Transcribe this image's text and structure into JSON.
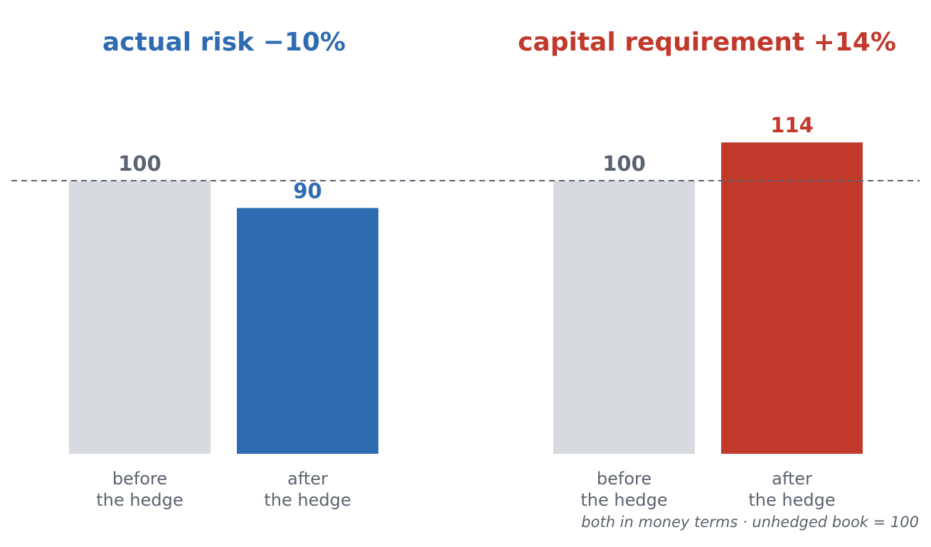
{
  "chart_data": {
    "type": "bar",
    "ylim": [
      0,
      120
    ],
    "baseline": {
      "value": 100,
      "style": "dashed",
      "color": "#5b6270"
    },
    "panels": [
      {
        "title": "actual risk  −10%",
        "title_color": "#2e6bb0",
        "bars": [
          {
            "category": [
              "before",
              "the hedge"
            ],
            "value": 100,
            "label": "100",
            "color": "#d7dadf",
            "label_color": "#5b6270"
          },
          {
            "category": [
              "after",
              "the hedge"
            ],
            "value": 90,
            "label": "90",
            "color": "#2e6bb0",
            "label_color": "#2e6bb0"
          }
        ]
      },
      {
        "title": "capital requirement  +14%",
        "title_color": "#c0392b",
        "bars": [
          {
            "category": [
              "before",
              "the hedge"
            ],
            "value": 100,
            "label": "100",
            "color": "#d7dadf",
            "label_color": "#5b6270"
          },
          {
            "category": [
              "after",
              "the hedge"
            ],
            "value": 114,
            "label": "114",
            "color": "#c0392b",
            "label_color": "#c0392b"
          }
        ]
      }
    ],
    "footnote": "both in money terms · unhedged book = 100"
  }
}
